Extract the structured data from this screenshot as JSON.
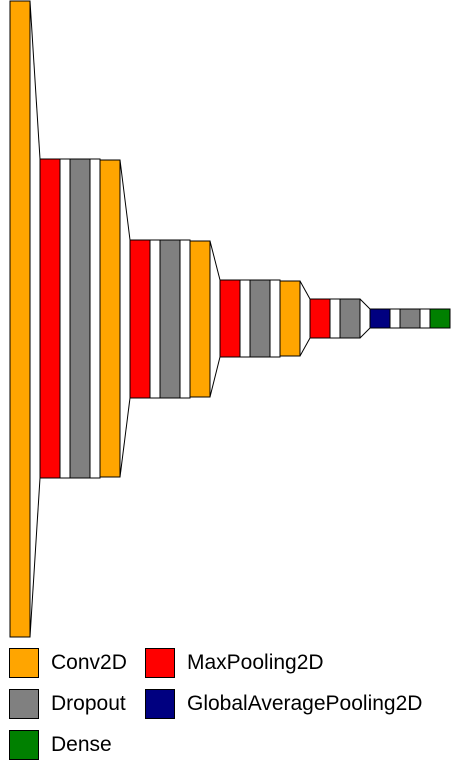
{
  "colors": {
    "Conv2D": "#FFA500",
    "MaxPooling2D": "#FF0000",
    "Dropout": "#808080",
    "GlobalAveragePooling2D": "#000080",
    "Dense": "#008000",
    "other": "#FFFFFF"
  },
  "legend": [
    {
      "label": "Conv2D",
      "color": "#FFA500"
    },
    {
      "label": "MaxPooling2D",
      "color": "#FF0000"
    },
    {
      "label": "Dropout",
      "color": "#808080"
    },
    {
      "label": "GlobalAveragePooling2D",
      "color": "#000080"
    },
    {
      "label": "Dense",
      "color": "#008000"
    }
  ],
  "layers": [
    {
      "type": "Conv2D"
    },
    {
      "type": "MaxPooling2D"
    },
    {
      "type": "other"
    },
    {
      "type": "Dropout"
    },
    {
      "type": "other"
    },
    {
      "type": "Conv2D"
    },
    {
      "type": "MaxPooling2D"
    },
    {
      "type": "other"
    },
    {
      "type": "Dropout"
    },
    {
      "type": "other"
    },
    {
      "type": "Conv2D"
    },
    {
      "type": "MaxPooling2D"
    },
    {
      "type": "other"
    },
    {
      "type": "Dropout"
    },
    {
      "type": "other"
    },
    {
      "type": "Conv2D"
    },
    {
      "type": "MaxPooling2D"
    },
    {
      "type": "other"
    },
    {
      "type": "Dropout"
    },
    {
      "type": "GlobalAveragePooling2D"
    },
    {
      "type": "other"
    },
    {
      "type": "Dropout"
    },
    {
      "type": "other"
    },
    {
      "type": "Dense"
    }
  ]
}
